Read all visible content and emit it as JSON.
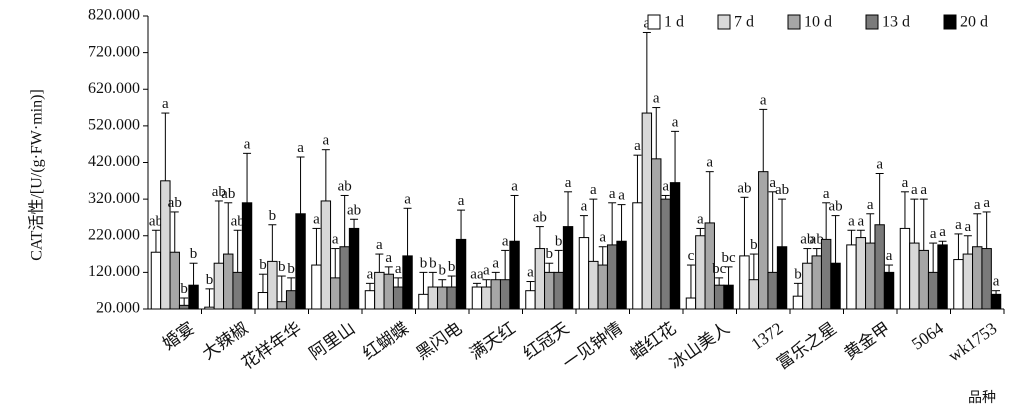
{
  "chart_data": {
    "type": "bar",
    "xlabel": "品种",
    "ylabel": "CAT活性/[U/(g·FW·min)]",
    "ylim": [
      20,
      820
    ],
    "yticks": [
      "20.000",
      "120.000",
      "220.000",
      "320.000",
      "420.000",
      "520.000",
      "620.000",
      "720.000",
      "820.000"
    ],
    "categories": [
      "婚宴",
      "大辣椒",
      "花样年华",
      "阿里山",
      "红蝴蝶",
      "黑闪电",
      "满天红",
      "红冠天",
      "一见钟情",
      "蜡红花",
      "冰山美人",
      "1372",
      "富乐之星",
      "黄金甲",
      "5064",
      "wk1753"
    ],
    "legend_position": "top-right",
    "series": [
      {
        "name": "1 d",
        "color": "#ffffff",
        "values": [
          175,
          25,
          65,
          140,
          70,
          60,
          80,
          70,
          215,
          310,
          50,
          165,
          55,
          195,
          240,
          155
        ],
        "errors": [
          60,
          50,
          50,
          100,
          20,
          60,
          10,
          25,
          60,
          130,
          90,
          160,
          35,
          40,
          100,
          70
        ],
        "labels": [
          "ab",
          "b",
          "b",
          "a",
          "a",
          "b",
          "aa",
          "a",
          "a",
          "a",
          "c",
          "ab",
          "b",
          "a",
          "a",
          "a"
        ]
      },
      {
        "name": "7 d",
        "color": "#d8d8d8",
        "values": [
          370,
          145,
          150,
          315,
          120,
          80,
          80,
          185,
          150,
          555,
          220,
          100,
          145,
          215,
          200,
          170
        ],
        "errors": [
          185,
          170,
          100,
          140,
          50,
          40,
          20,
          60,
          170,
          220,
          20,
          70,
          40,
          20,
          120,
          50
        ],
        "labels": [
          "a",
          "ab",
          "b",
          "a",
          "a",
          "b",
          "a",
          "ab",
          "a",
          "a",
          "a",
          "b",
          "ab",
          "a",
          "a",
          "a"
        ]
      },
      {
        "name": "10 d",
        "color": "#a6a6a6",
        "values": [
          175,
          170,
          40,
          105,
          115,
          80,
          100,
          120,
          140,
          430,
          255,
          395,
          165,
          200,
          180,
          190
        ],
        "errors": [
          110,
          140,
          70,
          80,
          20,
          20,
          20,
          25,
          50,
          140,
          140,
          170,
          20,
          80,
          140,
          90
        ],
        "labels": [
          "ab",
          "ab",
          "b",
          "a",
          "a",
          "b",
          "a",
          "b",
          "a",
          "a",
          "a",
          "a",
          "ab",
          "a",
          "a",
          "a"
        ]
      },
      {
        "name": "13 d",
        "color": "#7a7a7a",
        "values": [
          30,
          120,
          70,
          190,
          80,
          80,
          100,
          120,
          195,
          320,
          85,
          120,
          210,
          250,
          120,
          185
        ],
        "errors": [
          20,
          115,
          35,
          140,
          25,
          30,
          80,
          60,
          115,
          10,
          20,
          220,
          100,
          140,
          80,
          100
        ],
        "labels": [
          "b",
          "ab",
          "b",
          "ab",
          "a",
          "b",
          "a",
          "b",
          "a",
          "a",
          "bc",
          "a",
          "a",
          "a",
          "a",
          "a"
        ]
      },
      {
        "name": "20 d",
        "color": "#000000",
        "values": [
          85,
          310,
          280,
          240,
          165,
          210,
          205,
          245,
          205,
          365,
          85,
          190,
          145,
          120,
          195,
          60
        ],
        "errors": [
          60,
          135,
          155,
          25,
          130,
          80,
          125,
          95,
          100,
          140,
          50,
          130,
          130,
          20,
          10,
          10
        ],
        "labels": [
          "b",
          "a",
          "a",
          "ab",
          "a",
          "a",
          "a",
          "a",
          "a",
          "a",
          "bc",
          "ab",
          "ab",
          "a",
          "a",
          "a"
        ]
      }
    ]
  }
}
